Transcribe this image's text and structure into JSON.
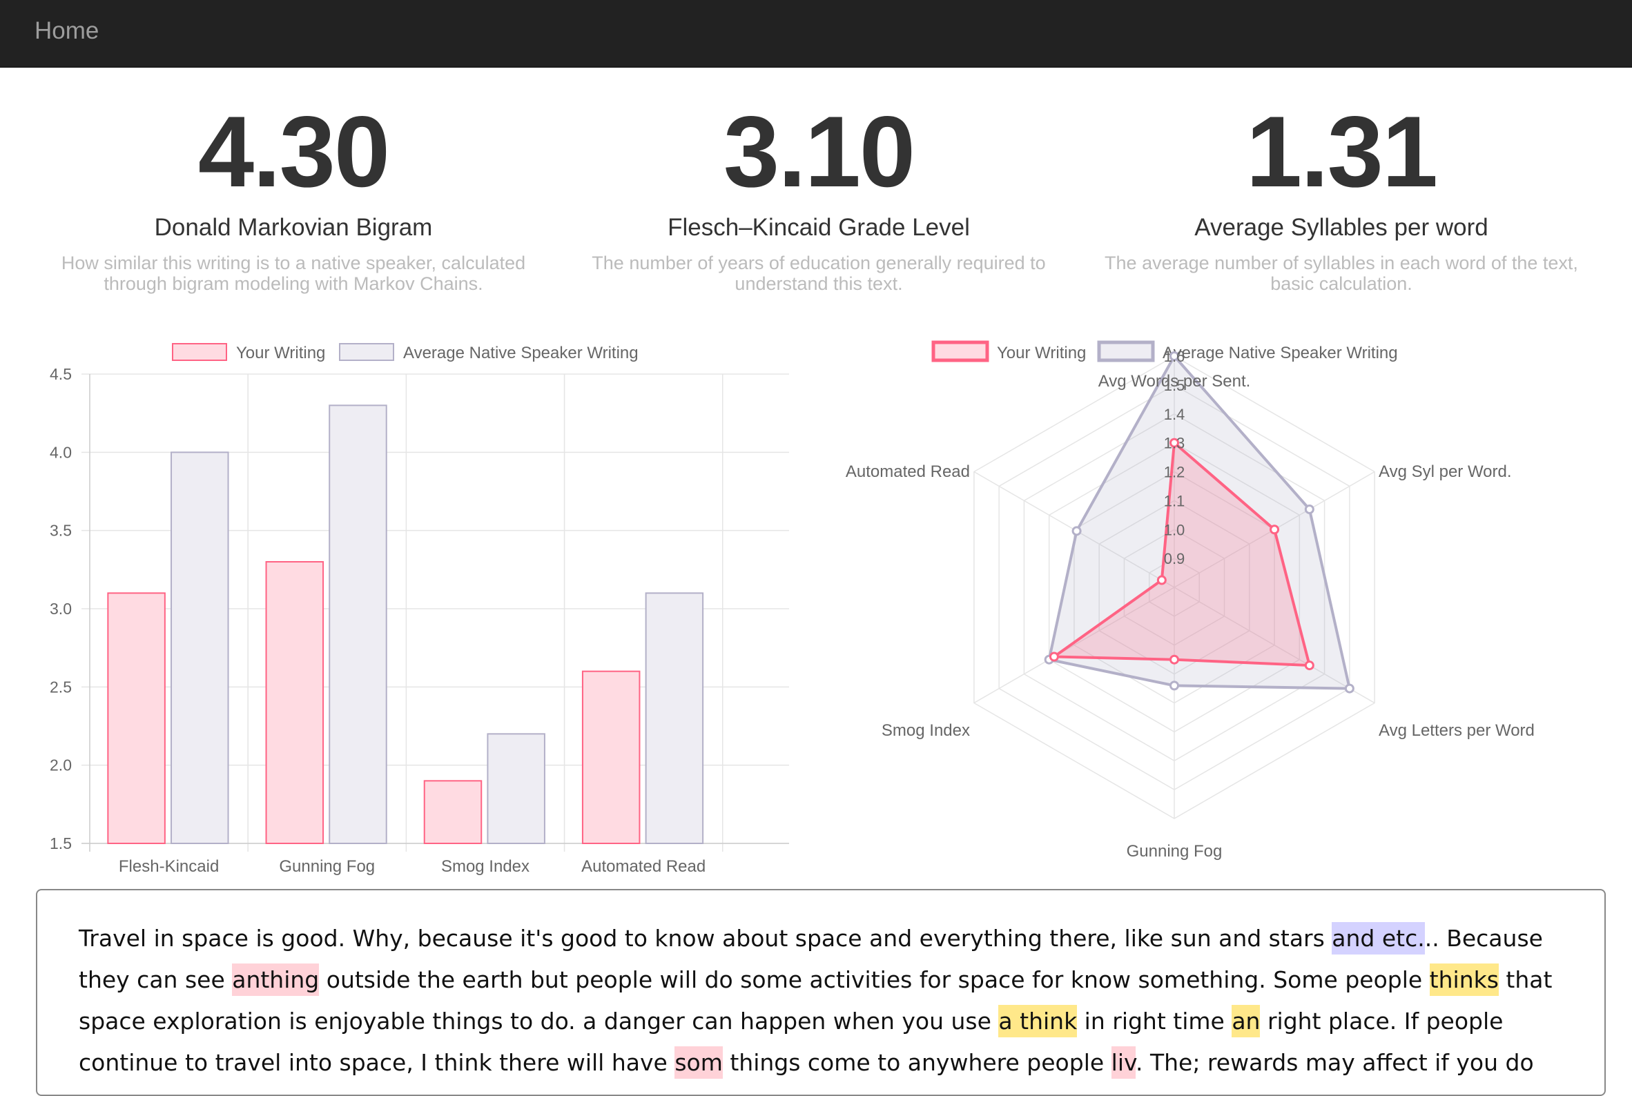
{
  "navbar": {
    "brand": "Home"
  },
  "stats": [
    {
      "value": "4.30",
      "label": "Donald Markovian Bigram",
      "desc": "How similar this writing is to a native speaker, calculated through bigram modeling with Markov Chains."
    },
    {
      "value": "3.10",
      "label": "Flesch–Kincaid Grade Level",
      "desc": "The number of years of education generally required to understand this text."
    },
    {
      "value": "1.31",
      "label": "Average Syllables per word",
      "desc": "The average number of syllables in each word of the text, basic calculation."
    }
  ],
  "colors": {
    "your_fill": "#ffdbe2",
    "your_stroke": "#ff6384",
    "avg_fill": "#eeedf3",
    "avg_stroke": "#b3b0c8",
    "grid": "#e5e5e5"
  },
  "chart_data": [
    {
      "type": "bar",
      "categories": [
        "Flesh-Kincaid",
        "Gunning Fog",
        "Smog Index",
        "Automated Read"
      ],
      "series": [
        {
          "name": "Your Writing",
          "values": [
            3.1,
            3.3,
            1.9,
            2.6
          ]
        },
        {
          "name": "Average Native Speaker Writing",
          "values": [
            4.0,
            4.3,
            2.2,
            3.1
          ]
        }
      ],
      "ylim": [
        1.5,
        4.5
      ],
      "yticks": [
        "4.5",
        "4.0",
        "3.5",
        "3.0",
        "2.5",
        "2.0",
        "1.5"
      ],
      "grid": true,
      "legend": "top"
    },
    {
      "type": "radar",
      "axes": [
        "Avg Words per Sent.",
        "Avg Syl per Word.",
        "Avg Letters per Word",
        "Gunning Fog",
        "Smog Index",
        "Automated Read"
      ],
      "series": [
        {
          "name": "Your Writing",
          "values": [
            1.3,
            1.2,
            1.34,
            1.05,
            1.28,
            0.85
          ]
        },
        {
          "name": "Average Native Speaker Writing",
          "values": [
            1.6,
            1.34,
            1.5,
            1.14,
            1.3,
            1.19
          ]
        }
      ],
      "scale_min": 0.8,
      "scale_max": 1.6,
      "ticks": [
        "0.9",
        "1.0",
        "1.1",
        "1.2",
        "1.3",
        "1.4",
        "1.5",
        "1.6"
      ],
      "legend": "top"
    }
  ],
  "essay": {
    "segments": [
      {
        "text": "Travel in space is good. Why, because it's good to know about space and everything there, like sun and stars "
      },
      {
        "text": "and etc.",
        "hl": "purple"
      },
      {
        "text": ".. Because they can see "
      },
      {
        "text": "anthing",
        "hl": "pink"
      },
      {
        "text": " outside the earth but people will do some activities for space for know something. Some people "
      },
      {
        "text": "thinks",
        "hl": "yellow"
      },
      {
        "text": " that space exploration is enjoyable things to do. a danger can happen when you use "
      },
      {
        "text": "a think",
        "hl": "yellow"
      },
      {
        "text": " in right time "
      },
      {
        "text": "an",
        "hl": "yellow"
      },
      {
        "text": " right place. If people continue to travel into space, I think there will have "
      },
      {
        "text": "som",
        "hl": "pink"
      },
      {
        "text": " things come to anywhere people "
      },
      {
        "text": "liv",
        "hl": "pink"
      },
      {
        "text": ". The; rewards may affect if you do not take it in time or life can happen a problem."
      }
    ]
  }
}
